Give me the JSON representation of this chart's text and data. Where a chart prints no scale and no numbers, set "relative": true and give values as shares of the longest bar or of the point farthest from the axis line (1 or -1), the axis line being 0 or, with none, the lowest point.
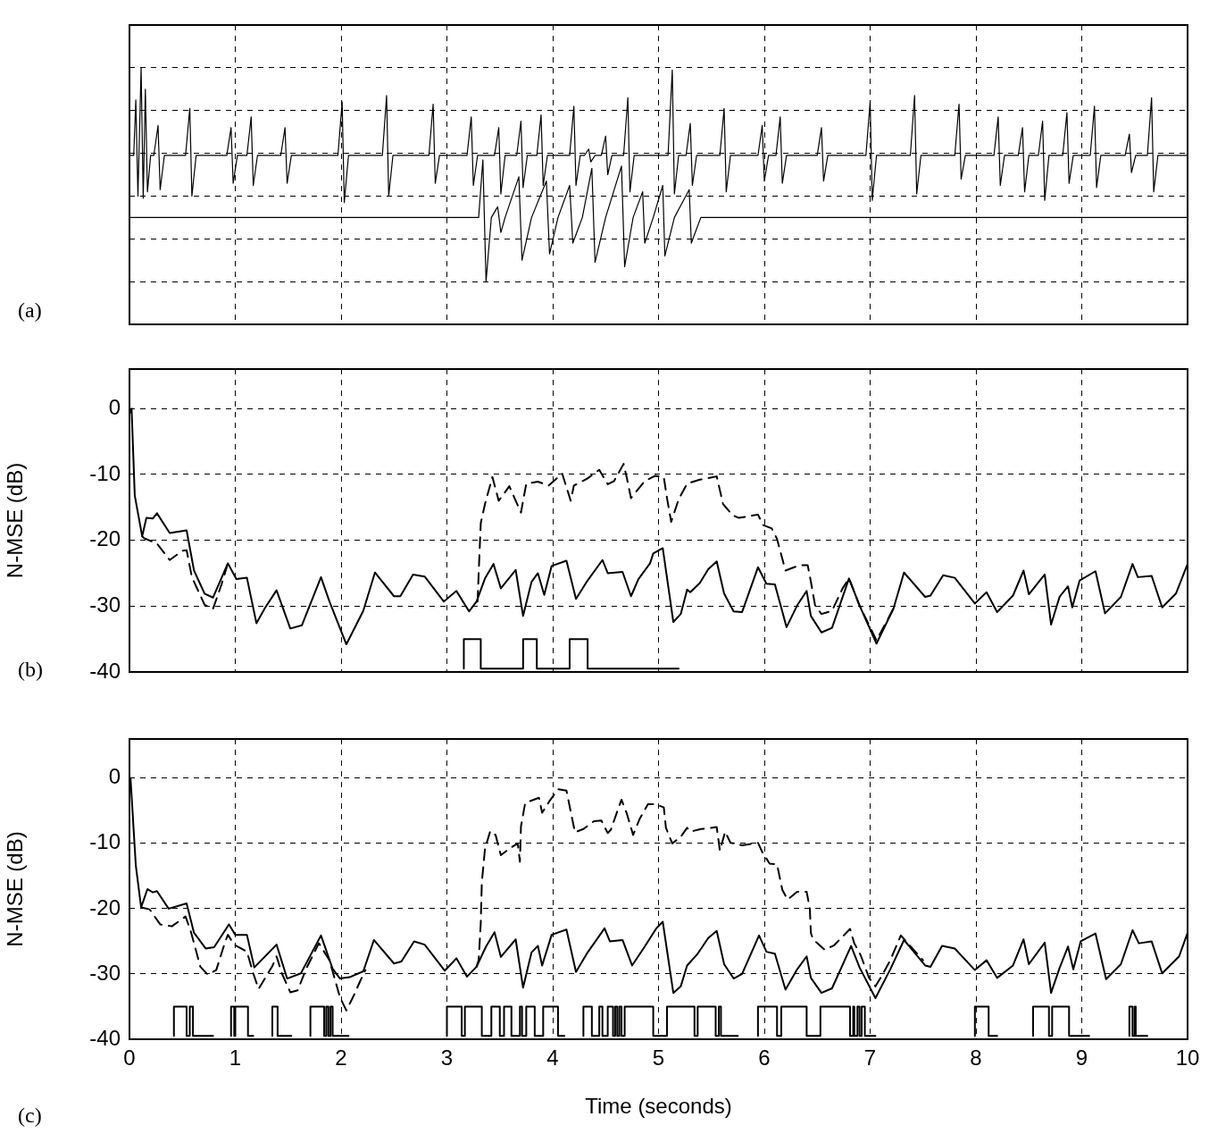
{
  "chart_data": [
    {
      "type": "line",
      "relative": true,
      "xlim": [
        0,
        10
      ],
      "xticks": [
        0,
        1,
        2,
        3,
        4,
        5,
        6,
        7,
        8,
        9,
        10
      ],
      "grid": true,
      "tick_labels": false,
      "annotations": [
        "(a)"
      ],
      "series": [
        {
          "color": "#000000",
          "x": [
            0,
            0.04,
            0.06,
            0.08,
            0.11,
            0.13,
            0.15,
            0.17,
            0.2,
            0.23,
            0.27,
            0.29,
            0.33,
            0.53,
            0.57,
            0.59,
            0.63,
            0.92,
            0.96,
            0.98,
            1.02,
            1.11,
            1.15,
            1.17,
            1.21,
            1.43,
            1.47,
            1.49,
            1.53,
            1.97,
            2.01,
            2.03,
            2.07,
            2.39,
            2.43,
            2.45,
            2.49,
            2.83,
            2.87,
            2.89,
            2.93,
            3.19,
            3.23,
            3.25,
            3.29,
            3.45,
            3.49,
            3.51,
            3.55,
            3.66,
            3.7,
            3.72,
            3.76,
            3.85,
            3.89,
            3.91,
            3.95,
            4.16,
            4.2,
            4.22,
            4.26,
            4.3,
            4.34,
            4.36,
            4.4,
            4.46,
            4.5,
            4.52,
            4.56,
            4.67,
            4.71,
            4.73,
            4.77,
            5.09,
            5.13,
            5.15,
            5.19,
            5.26,
            5.3,
            5.32,
            5.36,
            5.58,
            5.62,
            5.64,
            5.68,
            5.94,
            5.98,
            6,
            6.04,
            6.11,
            6.15,
            6.17,
            6.21,
            6.5,
            6.54,
            6.56,
            6.6,
            6.96,
            7,
            7.02,
            7.06,
            7.38,
            7.42,
            7.44,
            7.48,
            7.8,
            7.84,
            7.86,
            7.9,
            8.17,
            8.21,
            8.23,
            8.27,
            8.4,
            8.44,
            8.46,
            8.5,
            8.59,
            8.63,
            8.65,
            8.69,
            8.82,
            8.86,
            8.88,
            8.92,
            9.08,
            9.12,
            9.14,
            9.18,
            9.41,
            9.45,
            9.47,
            9.51,
            9.62,
            9.66,
            9.68,
            9.72,
            10
          ],
          "values": [
            0.59,
            0.59,
            0.85,
            0.4,
            1,
            0.39,
            0.9,
            0.42,
            0.59,
            0.59,
            0.73,
            0.43,
            0.59,
            0.59,
            0.81,
            0.4,
            0.59,
            0.59,
            0.72,
            0.46,
            0.59,
            0.59,
            0.77,
            0.45,
            0.59,
            0.59,
            0.72,
            0.46,
            0.59,
            0.59,
            0.84,
            0.37,
            0.59,
            0.59,
            0.87,
            0.4,
            0.59,
            0.59,
            0.83,
            0.46,
            0.59,
            0.59,
            0.77,
            0.45,
            0.59,
            0.59,
            0.72,
            0.41,
            0.59,
            0.59,
            0.75,
            0.44,
            0.59,
            0.59,
            0.78,
            0.45,
            0.59,
            0.59,
            0.82,
            0.45,
            0.59,
            0.59,
            0.62,
            0.56,
            0.59,
            0.59,
            0.68,
            0.5,
            0.59,
            0.59,
            0.86,
            0.42,
            0.59,
            0.59,
            0.99,
            0.41,
            0.59,
            0.59,
            0.74,
            0.45,
            0.59,
            0.59,
            0.81,
            0.42,
            0.59,
            0.59,
            0.73,
            0.47,
            0.59,
            0.59,
            0.77,
            0.46,
            0.59,
            0.59,
            0.72,
            0.47,
            0.59,
            0.59,
            0.84,
            0.38,
            0.59,
            0.59,
            0.87,
            0.41,
            0.59,
            0.59,
            0.83,
            0.48,
            0.59,
            0.59,
            0.77,
            0.45,
            0.59,
            0.59,
            0.72,
            0.42,
            0.59,
            0.59,
            0.75,
            0.38,
            0.59,
            0.59,
            0.79,
            0.46,
            0.59,
            0.59,
            0.82,
            0.44,
            0.59,
            0.59,
            0.69,
            0.51,
            0.59,
            0.59,
            0.86,
            0.42,
            0.59,
            0.59
          ]
        },
        {
          "color": "#000000",
          "x": [
            0,
            3.3,
            3.34,
            3.37,
            3.42,
            3.48,
            3.51,
            3.55,
            3.68,
            3.71,
            3.8,
            3.94,
            3.97,
            4.05,
            4.16,
            4.19,
            4.28,
            4.37,
            4.4,
            4.5,
            4.65,
            4.68,
            4.76,
            4.85,
            4.87,
            4.95,
            5.04,
            5.06,
            5.15,
            5.29,
            5.31,
            5.4,
            10
          ],
          "values": [
            0.3,
            0.3,
            0.57,
            0,
            0.3,
            0.35,
            0.23,
            0.3,
            0.49,
            0.1,
            0.3,
            0.47,
            0.13,
            0.3,
            0.45,
            0.18,
            0.3,
            0.53,
            0.09,
            0.3,
            0.54,
            0.07,
            0.3,
            0.42,
            0.18,
            0.3,
            0.45,
            0.12,
            0.3,
            0.43,
            0.18,
            0.3,
            0.3
          ]
        }
      ]
    },
    {
      "type": "line",
      "ylabel": "N-MSE (dB)",
      "xlim": [
        0,
        10
      ],
      "xticks": [
        0,
        1,
        2,
        3,
        4,
        5,
        6,
        7,
        8,
        9,
        10
      ],
      "ylim": [
        -40,
        6
      ],
      "yticks": [
        -40,
        -30,
        -20,
        -10,
        0
      ],
      "grid": true,
      "tick_labels": "y",
      "annotations": [
        "(b)"
      ],
      "series": [
        {
          "color": "#000000",
          "x": [
            0,
            0.02,
            0.05,
            0.12,
            0.16,
            0.22,
            0.26,
            0.38,
            0.54,
            0.61,
            0.71,
            0.79,
            0.93,
            1.01,
            1.11,
            1.2,
            1.28,
            1.39,
            1.52,
            1.63,
            1.81,
            1.89,
            2.05,
            2.21,
            2.32,
            2.5,
            2.56,
            2.68,
            2.79,
            2.97,
            3.09,
            3.21,
            3.28,
            3.36,
            3.44,
            3.51,
            3.65,
            3.72,
            3.8,
            3.86,
            3.92,
            3.99,
            4.13,
            4.22,
            4.33,
            4.47,
            4.52,
            4.66,
            4.74,
            4.81,
            4.92,
            4.95,
            5.04,
            5.14,
            5.21,
            5.27,
            5.3,
            5.39,
            5.47,
            5.55,
            5.62,
            5.71,
            5.79,
            5.94,
            6.02,
            6.1,
            6.21,
            6.31,
            6.4,
            6.44,
            6.54,
            6.64,
            6.8,
            6.9,
            7.06,
            7.22,
            7.32,
            7.52,
            7.57,
            7.69,
            7.8,
            7.99,
            8.1,
            8.2,
            8.35,
            8.45,
            8.5,
            8.65,
            8.71,
            8.79,
            8.87,
            8.91,
            8.98,
            9.13,
            9.22,
            9.37,
            9.48,
            9.53,
            9.66,
            9.76,
            9.89,
            10
          ],
          "values": [
            -0.8,
            0,
            -13.2,
            -19.4,
            -16.6,
            -16.7,
            -15.9,
            -18.9,
            -18.5,
            -24.6,
            -28.1,
            -28.7,
            -23.5,
            -25.9,
            -25.7,
            -32.6,
            -30.3,
            -27.6,
            -33.4,
            -32.9,
            -25.6,
            -29.3,
            -35.8,
            -30.7,
            -24.9,
            -28.5,
            -28.5,
            -25.2,
            -25.5,
            -29.3,
            -27.7,
            -30.8,
            -29.3,
            -25.8,
            -23.6,
            -27.3,
            -24.5,
            -31.5,
            -26.3,
            -25,
            -28.3,
            -23.9,
            -23.1,
            -28.9,
            -26.1,
            -23,
            -25,
            -24.8,
            -28.5,
            -25.9,
            -23.5,
            -22,
            -21.2,
            -32.4,
            -31.2,
            -27.5,
            -27.9,
            -26.5,
            -24.4,
            -23.2,
            -28.1,
            -30.8,
            -30.9,
            -24.1,
            -26.6,
            -26.7,
            -33.2,
            -29.9,
            -27.7,
            -31.5,
            -34,
            -33.3,
            -25.8,
            -29.9,
            -35.7,
            -30.4,
            -24.9,
            -28.6,
            -28.4,
            -25.3,
            -25.7,
            -29.6,
            -27.9,
            -30.9,
            -28.4,
            -24.6,
            -28.2,
            -25.2,
            -32.8,
            -28.6,
            -27,
            -30.2,
            -26.1,
            -24.7,
            -31.1,
            -28.6,
            -23.6,
            -25.6,
            -25.4,
            -30.2,
            -28.1,
            -23.6
          ]
        },
        {
          "color": "#000000",
          "line_style": "dashed",
          "x": [
            0.12,
            0.14,
            0.26,
            0.38,
            0.5,
            0.54,
            0.59,
            0.71,
            0.79,
            0.87,
            0.93,
            0.94,
            3.29,
            3.3,
            3.32,
            3.36,
            3.43,
            3.49,
            3.59,
            3.7,
            3.75,
            3.86,
            3.96,
            4.09,
            4.17,
            4.2,
            4.33,
            4.44,
            4.52,
            4.58,
            4.67,
            4.7,
            4.74,
            4.87,
            4.97,
            5.05,
            5.08,
            5.12,
            5.19,
            5.27,
            5.39,
            5.55,
            5.58,
            5.61,
            5.7,
            5.76,
            5.94,
            5.99,
            6.07,
            6.12,
            6.17,
            6.2,
            6.33,
            6.41,
            6.43,
            6.48,
            6.54,
            6.64,
            6.74,
            6.8,
            6.9,
            7.06,
            7.22
          ],
          "values": [
            -19.4,
            -19.7,
            -20.5,
            -23,
            -21.6,
            -21.5,
            -25.6,
            -29.8,
            -30.4,
            -26.7,
            -23.5,
            null,
            -29.3,
            -25.1,
            -17.4,
            -14.5,
            -10.4,
            -14,
            -11.8,
            -15.8,
            -11.4,
            -11.1,
            -11.7,
            -9.9,
            -14,
            -11.7,
            -10.6,
            -9.3,
            -11.5,
            -11,
            -8.4,
            -10.5,
            -13.6,
            -11,
            -10.2,
            -10.4,
            -13.6,
            -17.2,
            -13.8,
            -11.4,
            -10.8,
            -10.3,
            -12.4,
            -14.5,
            -16.2,
            -16.6,
            -16.1,
            -17.7,
            -18.2,
            -19.8,
            -22.8,
            -24.6,
            -23.8,
            -23.8,
            -25.4,
            -29.9,
            -31.2,
            -30.7,
            -27.3,
            -25.8,
            -29.9,
            -35.2,
            -30.4
          ]
        },
        {
          "type": "step",
          "color": "#000000",
          "x": [
            3.16,
            3.32,
            3.72,
            3.85,
            4.16,
            4.33,
            5.14,
            5.19
          ],
          "values": [
            -39.5,
            -35,
            -39.5,
            -35,
            -39.5,
            -35,
            -39.5,
            -39.5
          ]
        }
      ]
    },
    {
      "type": "line",
      "xlabel": "Time (seconds)",
      "ylabel": "N-MSE (dB)",
      "xlim": [
        0,
        10
      ],
      "xticks": [
        0,
        1,
        2,
        3,
        4,
        5,
        6,
        7,
        8,
        9,
        10
      ],
      "ylim": [
        -40,
        6
      ],
      "yticks": [
        -40,
        -30,
        -20,
        -10,
        0
      ],
      "grid": true,
      "annotations": [
        "(c)"
      ],
      "series": [
        {
          "color": "#000000",
          "x": [
            0,
            0.01,
            0.06,
            0.11,
            0.17,
            0.22,
            0.26,
            0.37,
            0.54,
            0.61,
            0.72,
            0.8,
            0.94,
            1,
            1.11,
            1.18,
            1.39,
            1.49,
            1.62,
            1.81,
            1.92,
            1.99,
            2.08,
            2.21,
            2.31,
            2.5,
            2.57,
            2.69,
            2.79,
            2.98,
            3.09,
            3.19,
            3.28,
            3.37,
            3.45,
            3.51,
            3.65,
            3.72,
            3.8,
            3.86,
            3.9,
            3.99,
            4.13,
            4.22,
            4.33,
            4.49,
            4.54,
            4.66,
            4.75,
            4.87,
            4.98,
            5.04,
            5.14,
            5.21,
            5.27,
            5.37,
            5.47,
            5.55,
            5.62,
            5.71,
            5.79,
            5.95,
            6.02,
            6.1,
            6.2,
            6.31,
            6.4,
            6.44,
            6.54,
            6.64,
            6.82,
            6.9,
            7.05,
            7.19,
            7.32,
            7.52,
            7.57,
            7.68,
            7.8,
            7.99,
            8.1,
            8.2,
            8.35,
            8.45,
            8.5,
            8.65,
            8.71,
            8.79,
            8.87,
            8.92,
            8.99,
            9.13,
            9.23,
            9.37,
            9.48,
            9.54,
            9.66,
            9.76,
            9.92,
            10
          ],
          "values": [
            -2,
            0,
            -13.4,
            -19.8,
            -17,
            -17.5,
            -17.3,
            -20,
            -19.2,
            -23.7,
            -26.1,
            -25.9,
            -22.4,
            -24,
            -24,
            -29,
            -25.5,
            -30.7,
            -29.9,
            -24.1,
            -29.2,
            -30.7,
            -30.5,
            -29.6,
            -24.8,
            -28.4,
            -28.1,
            -25,
            -25.5,
            -29.5,
            -27.6,
            -30.4,
            -28.9,
            -25.8,
            -23.6,
            -27.4,
            -24.7,
            -32.1,
            -26.7,
            -25.7,
            -28.7,
            -24,
            -23.2,
            -29.7,
            -26.7,
            -23,
            -25,
            -24.8,
            -28.7,
            -25.8,
            -23,
            -22,
            -32.9,
            -31.9,
            -28.7,
            -26.9,
            -24.5,
            -23.4,
            -28.5,
            -30.7,
            -30,
            -24.1,
            -26.6,
            -26.9,
            -32.4,
            -29.3,
            -27.3,
            -30.6,
            -32.9,
            -32.2,
            -25.7,
            -29,
            -33.7,
            -29.3,
            -24.8,
            -28.7,
            -28.9,
            -25.7,
            -26.1,
            -29.4,
            -27.9,
            -30.6,
            -28.7,
            -24.7,
            -28.5,
            -25.2,
            -32.9,
            -29.1,
            -25.8,
            -29.3,
            -25,
            -23.8,
            -30.8,
            -28.5,
            -23.3,
            -25.3,
            -25,
            -29.9,
            -27.3,
            -23.7
          ]
        },
        {
          "color": "#000000",
          "line_style": "dashed",
          "x": [
            0.11,
            0.19,
            0.29,
            0.4,
            0.53,
            0.58,
            0.67,
            0.74,
            0.82,
            0.9,
            0.93,
            0.99,
            1.11,
            1.17,
            1.22,
            1.35,
            1.39,
            1.44,
            1.52,
            1.59,
            1.67,
            1.79,
            1.89,
            1.99,
            2.05,
            2.12,
            2.18,
            2.23,
            2.24,
            3.28,
            3.3,
            3.32,
            3.33,
            3.36,
            3.41,
            3.46,
            3.51,
            3.6,
            3.67,
            3.69,
            3.7,
            3.74,
            3.87,
            3.9,
            3.97,
            4.05,
            4.13,
            4.17,
            4.21,
            4.29,
            4.39,
            4.46,
            4.52,
            4.55,
            4.61,
            4.65,
            4.7,
            4.76,
            4.82,
            4.9,
            4.98,
            5.05,
            5.07,
            5.13,
            5.21,
            5.27,
            5.3,
            5.4,
            5.55,
            5.58,
            5.63,
            5.68,
            5.79,
            5.94,
            5.98,
            6.05,
            6.12,
            6.17,
            6.22,
            6.31,
            6.4,
            6.43,
            6.44,
            6.46,
            6.57,
            6.66,
            6.81,
            6.85,
            6.91,
            6.99,
            7.05,
            7.12,
            7.19,
            7.29,
            7.5
          ],
          "values": [
            -19.8,
            -20.1,
            -22.4,
            -22.7,
            -21.2,
            -23.5,
            -28.9,
            -30.1,
            -29.4,
            -25.3,
            -24,
            -25.5,
            -26.6,
            -29.9,
            -32.3,
            -28.8,
            -27.3,
            -29.9,
            -32.8,
            -32.5,
            -29.2,
            -25.3,
            -27.9,
            -33.6,
            -35.6,
            -33.3,
            -31.1,
            -29.4,
            null,
            -28.9,
            -27.9,
            -22.2,
            -16,
            -10.8,
            -8.1,
            -8.7,
            -11.8,
            -10.7,
            -10,
            -12.8,
            -7.4,
            -3.8,
            -3,
            -5.3,
            -3.5,
            -1.7,
            -1.9,
            -5.1,
            -8.3,
            -7.8,
            -6.6,
            -6.5,
            -8.4,
            -7.9,
            -5.1,
            -3.3,
            -5.4,
            -8.7,
            -6.3,
            -4,
            -4,
            -4.5,
            -7.6,
            -10,
            -9,
            -7.6,
            -8.2,
            -7.8,
            -7.5,
            -11.1,
            -8.2,
            -9.9,
            -10.3,
            -9.9,
            -11.3,
            -13.1,
            -13.2,
            -17.1,
            -18.6,
            -17.4,
            -17.4,
            -20,
            -23.7,
            -24.7,
            -26.3,
            -25.6,
            -23.1,
            -25.3,
            -27.1,
            -30.6,
            -31.9,
            -30,
            -27.9,
            -24.1,
            -27.9
          ]
        },
        {
          "type": "step",
          "color": "#000000",
          "x": [
            0.42,
            0.54,
            0.57,
            0.6,
            0.63,
            0.79,
            0.8,
            0.96,
            0.99,
            1,
            1.12,
            1.15,
            1.17,
            1.18,
            1.35,
            1.4,
            1.52,
            1.53,
            1.54,
            1.71,
            1.84,
            1.86,
            1.88,
            1.9,
            1.92,
            1.97,
            2.07,
            2.08,
            3,
            3.14,
            3.17,
            3.33,
            3.42,
            3.5,
            3.54,
            3.61,
            3.69,
            3.71,
            3.75,
            3.83,
            3.91,
            4.05,
            4.09,
            4.11,
            4.12,
            4.29,
            4.37,
            4.44,
            4.47,
            4.52,
            4.57,
            4.59,
            4.61,
            4.63,
            4.65,
            4.68,
            4.95,
            5.08,
            5.34,
            5.37,
            5.54,
            5.57,
            5.59,
            5.63,
            5.75,
            5.76,
            5.94,
            6.12,
            6.16,
            6.4,
            6.53,
            6.81,
            6.84,
            6.85,
            6.88,
            6.9,
            6.92,
            6.95,
            6.99,
            7.05,
            7.06,
            7.99,
            8.12,
            8.15,
            8.2,
            8.21,
            8.54,
            8.69,
            8.72,
            8.88,
            8.91,
            9.07,
            9.08,
            9.45,
            9.48,
            9.5,
            9.51,
            9.53,
            9.62
          ],
          "values": [
            -39.5,
            -35,
            -39.5,
            -35,
            -39.5,
            -39.5,
            null,
            -39.5,
            -35,
            -39.5,
            -35,
            -39.5,
            -39.5,
            null,
            -39.5,
            -35,
            -39.5,
            -39.5,
            null,
            -39.5,
            -35,
            -39.5,
            -35,
            -39.5,
            -35,
            -39.5,
            -39.5,
            null,
            -39.5,
            -35,
            -39.5,
            -35,
            -39.5,
            -35,
            -39.5,
            -35,
            -39.5,
            -35,
            -39.5,
            -35,
            -39.5,
            -35,
            -39.5,
            -39.5,
            null,
            -39.5,
            -35,
            -39.5,
            -35,
            -39.5,
            -35,
            -39.5,
            -35,
            -39.5,
            -35,
            -39.5,
            -35,
            -39.5,
            -35,
            -39.5,
            -35,
            -39.5,
            -35,
            -39.5,
            -39.5,
            null,
            -39.5,
            -35,
            -39.5,
            -35,
            -39.5,
            -35,
            -39.5,
            -35,
            -39.5,
            -35,
            -39.5,
            -35,
            -39.5,
            -39.5,
            null,
            -39.5,
            -35,
            -39.5,
            -39.5,
            null,
            -39.5,
            -35,
            -39.5,
            -35,
            -39.5,
            -39.5,
            null,
            -39.5,
            -35,
            -39.5,
            -35,
            -39.5,
            -39.5
          ]
        }
      ]
    }
  ]
}
